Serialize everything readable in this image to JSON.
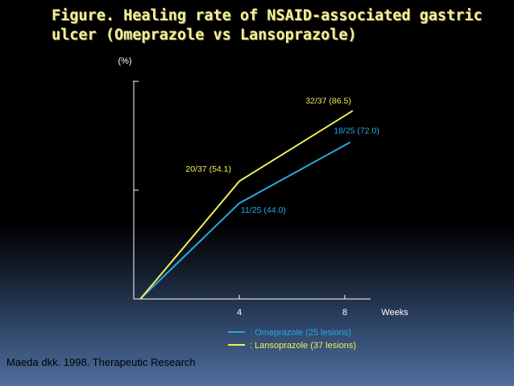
{
  "slide": {
    "title": "Figure. Healing rate of NSAID-associated gastric ulcer (Omeprazole vs Lansoprazole)",
    "citation": "Maeda dkk. 1998. Therapeutic Research"
  },
  "chart_data": {
    "type": "line",
    "title": "Figure. Healing rate of NSAID-associated gastric ulcer (Omeprazole vs Lansoprazole)",
    "ylabel": "(%)",
    "xlabel": "Weeks",
    "xlim": [
      0,
      10
    ],
    "ylim": [
      0,
      100
    ],
    "x_ticks": [
      {
        "value": 4,
        "label": "4"
      },
      {
        "value": 8,
        "label": "8"
      }
    ],
    "y_ticks": [
      50,
      100
    ],
    "grid": false,
    "legend_position": "bottom",
    "series": [
      {
        "name": ": Omeprazole (25 lesions)",
        "color": "#27a9df",
        "points": [
          {
            "x": 0.25,
            "y": 0,
            "label": ""
          },
          {
            "x": 4,
            "y": 44.0,
            "label": "11/25 (44.0)"
          },
          {
            "x": 8.2,
            "y": 72.0,
            "label": "18/25 (72.0)"
          }
        ]
      },
      {
        "name": ": Lansoprazole (37 lesions)",
        "color": "#f2ee5a",
        "points": [
          {
            "x": 0.25,
            "y": 0,
            "label": ""
          },
          {
            "x": 4,
            "y": 54.1,
            "label": "20/37 (54.1)"
          },
          {
            "x": 8.3,
            "y": 86.5,
            "label": "32/37 (86.5)"
          }
        ]
      }
    ]
  }
}
